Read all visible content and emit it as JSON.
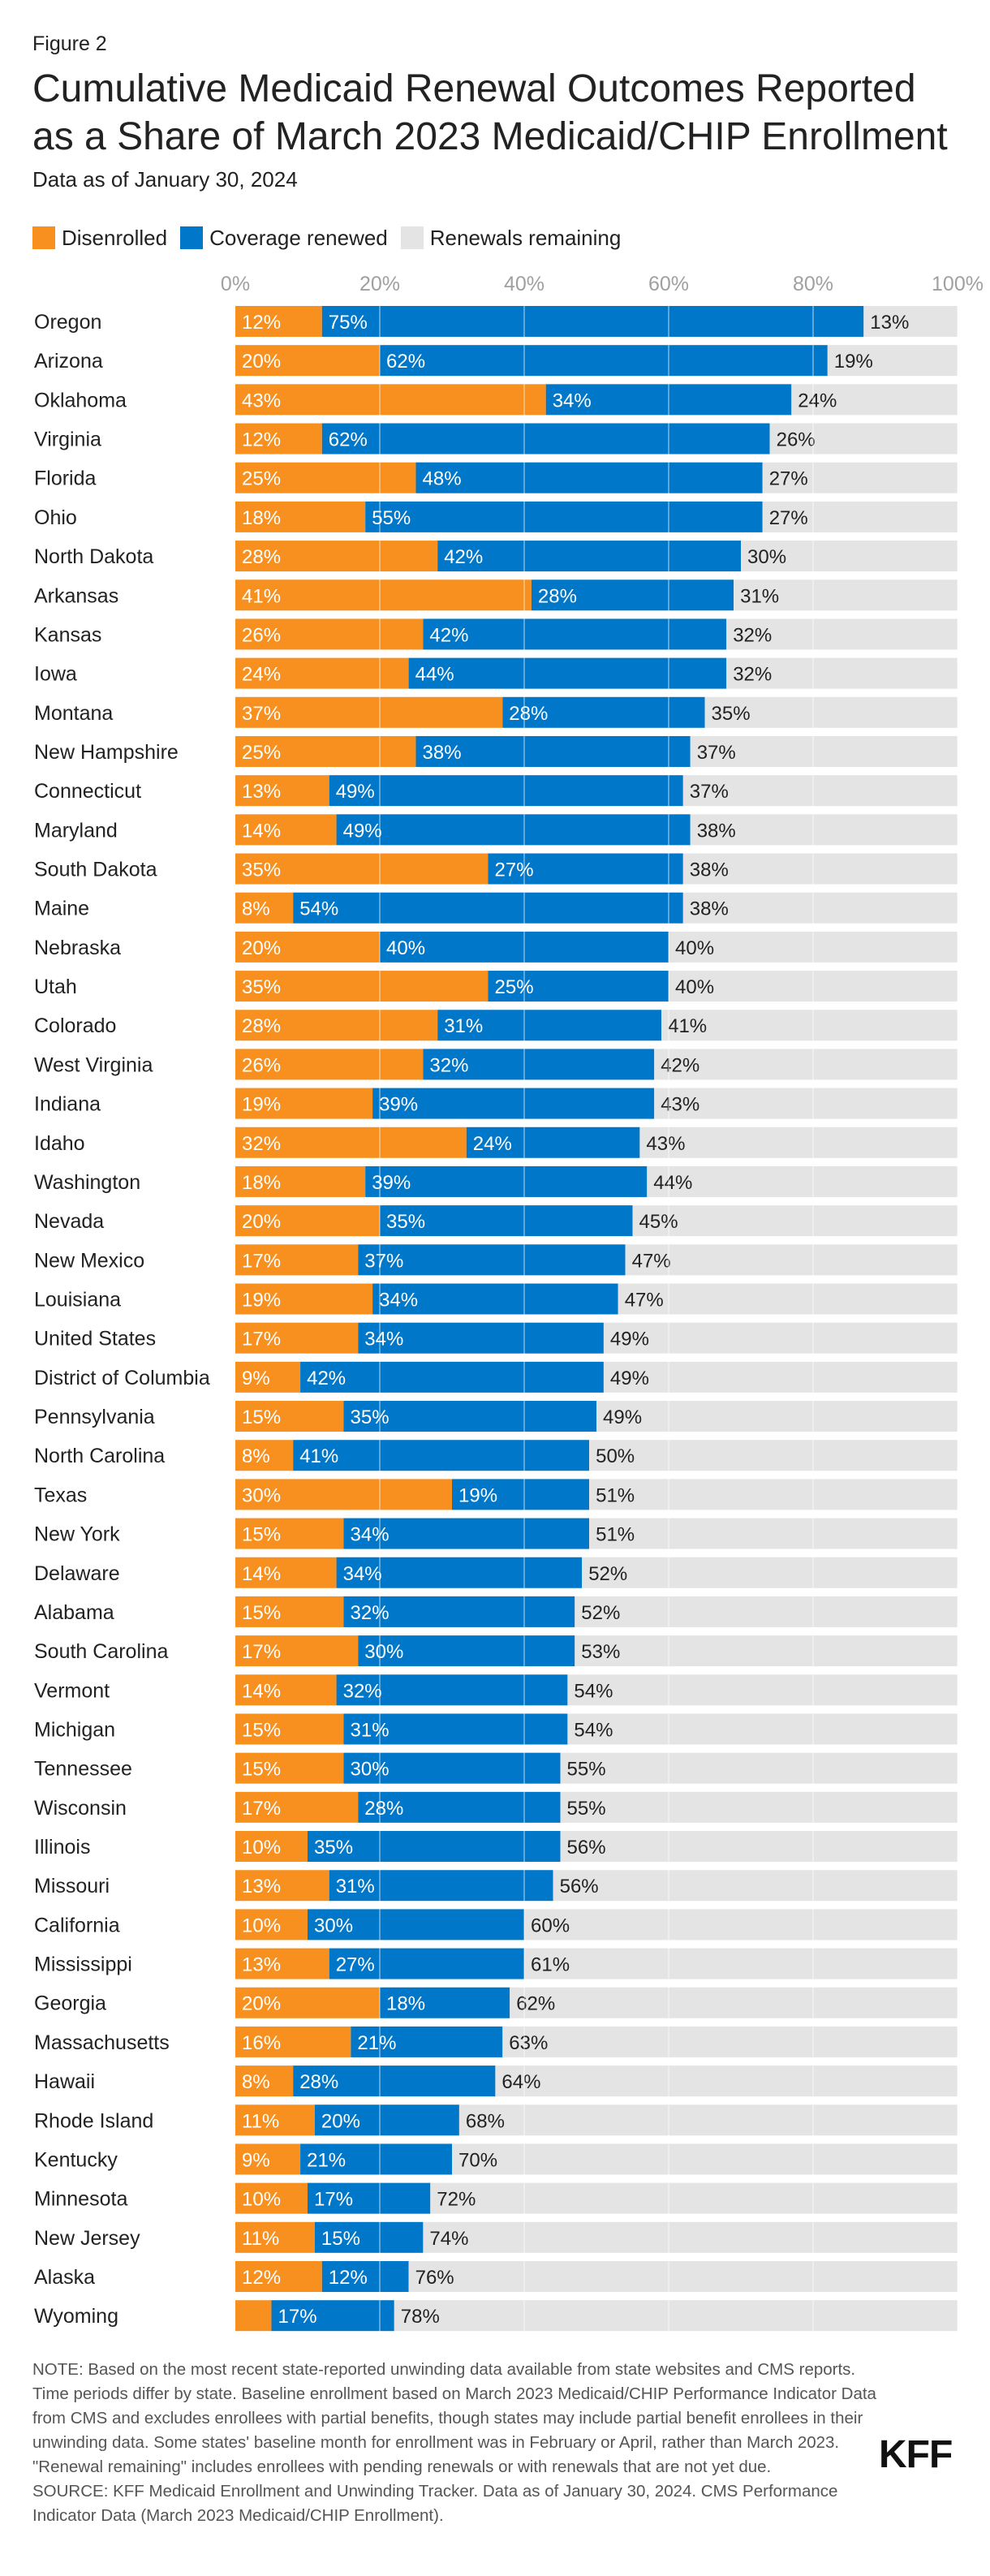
{
  "figure_label": "Figure 2",
  "title": "Cumulative Medicaid Renewal Outcomes Reported as a Share of March 2023 Medicaid/CHIP Enrollment",
  "subtitle": "Data as of January 30, 2024",
  "notes": {
    "note": "NOTE: Based on the most recent state-reported unwinding data available from state websites and CMS reports. Time periods differ by state. Baseline enrollment based on March 2023 Medicaid/CHIP Performance Indicator Data from CMS and excludes enrollees with partial benefits, though states may include partial benefit enrollees in their unwinding data. Some states' baseline month for enrollment was in February or April, rather than March 2023. \"Renewal remaining\" includes enrollees with pending renewals or with renewals that are not yet due.",
    "source": "SOURCE: KFF Medicaid Enrollment and Unwinding Tracker. Data as of January 30, 2024. CMS Performance Indicator Data (March 2023 Medicaid/CHIP Enrollment)."
  },
  "brand": "KFF",
  "colors": {
    "disenrolled": "#f7901e",
    "renewed": "#0077c8",
    "remaining": "#e4e4e4",
    "grid": "#ffffff",
    "axis_text": "#a0a0a0"
  },
  "chart_data": {
    "type": "bar",
    "orientation": "horizontal",
    "stacked": true,
    "legend": {
      "position": "top-left"
    },
    "grid": true,
    "xlim": [
      0,
      100
    ],
    "x_ticks": [
      "0%",
      "20%",
      "40%",
      "60%",
      "80%",
      "100%"
    ],
    "categories": [
      "Oregon",
      "Arizona",
      "Oklahoma",
      "Virginia",
      "Florida",
      "Ohio",
      "North Dakota",
      "Arkansas",
      "Kansas",
      "Iowa",
      "Montana",
      "New Hampshire",
      "Connecticut",
      "Maryland",
      "South Dakota",
      "Maine",
      "Nebraska",
      "Utah",
      "Colorado",
      "West Virginia",
      "Indiana",
      "Idaho",
      "Washington",
      "Nevada",
      "New Mexico",
      "Louisiana",
      "United States",
      "District of Columbia",
      "Pennsylvania",
      "North Carolina",
      "Texas",
      "New York",
      "Delaware",
      "Alabama",
      "South Carolina",
      "Vermont",
      "Michigan",
      "Tennessee",
      "Wisconsin",
      "Illinois",
      "Missouri",
      "California",
      "Mississippi",
      "Georgia",
      "Massachusetts",
      "Hawaii",
      "Rhode Island",
      "Kentucky",
      "Minnesota",
      "New Jersey",
      "Alaska",
      "Wyoming"
    ],
    "series": [
      {
        "name": "Disenrolled",
        "values": [
          12,
          20,
          43,
          12,
          25,
          18,
          28,
          41,
          26,
          24,
          37,
          25,
          13,
          14,
          35,
          8,
          20,
          35,
          28,
          26,
          19,
          32,
          18,
          20,
          17,
          19,
          17,
          9,
          15,
          8,
          30,
          15,
          14,
          15,
          17,
          14,
          15,
          15,
          17,
          10,
          13,
          10,
          13,
          20,
          16,
          8,
          11,
          9,
          10,
          11,
          12,
          5
        ]
      },
      {
        "name": "Coverage renewed",
        "values": [
          75,
          62,
          34,
          62,
          48,
          55,
          42,
          28,
          42,
          44,
          28,
          38,
          49,
          49,
          27,
          54,
          40,
          25,
          31,
          32,
          39,
          24,
          39,
          35,
          37,
          34,
          34,
          42,
          35,
          41,
          19,
          34,
          34,
          32,
          30,
          32,
          31,
          30,
          28,
          35,
          31,
          30,
          27,
          18,
          21,
          28,
          20,
          21,
          17,
          15,
          12,
          17
        ]
      },
      {
        "name": "Renewals remaining",
        "values": [
          13,
          19,
          24,
          26,
          27,
          27,
          30,
          31,
          32,
          32,
          35,
          37,
          37,
          38,
          38,
          38,
          40,
          40,
          41,
          42,
          43,
          43,
          44,
          45,
          47,
          47,
          49,
          49,
          49,
          50,
          51,
          51,
          52,
          52,
          53,
          54,
          54,
          55,
          55,
          56,
          56,
          60,
          61,
          62,
          63,
          64,
          68,
          70,
          72,
          74,
          76,
          78
        ]
      }
    ],
    "labels": {
      "disenrolled": [
        "12%",
        "20%",
        "43%",
        "12%",
        "25%",
        "18%",
        "28%",
        "41%",
        "26%",
        "24%",
        "37%",
        "25%",
        "13%",
        "14%",
        "35%",
        "8%",
        "20%",
        "35%",
        "28%",
        "26%",
        "19%",
        "32%",
        "18%",
        "20%",
        "17%",
        "19%",
        "17%",
        "9%",
        "15%",
        "8%",
        "30%",
        "15%",
        "14%",
        "15%",
        "17%",
        "14%",
        "15%",
        "15%",
        "17%",
        "10%",
        "13%",
        "10%",
        "13%",
        "20%",
        "16%",
        "8%",
        "11%",
        "9%",
        "10%",
        "11%",
        "12%",
        ""
      ],
      "renewed": [
        "75%",
        "62%",
        "34%",
        "62%",
        "48%",
        "55%",
        "42%",
        "28%",
        "42%",
        "44%",
        "28%",
        "38%",
        "49%",
        "49%",
        "27%",
        "54%",
        "40%",
        "25%",
        "31%",
        "32%",
        "39%",
        "24%",
        "39%",
        "35%",
        "37%",
        "34%",
        "34%",
        "42%",
        "35%",
        "41%",
        "19%",
        "34%",
        "34%",
        "32%",
        "30%",
        "32%",
        "31%",
        "30%",
        "28%",
        "35%",
        "31%",
        "30%",
        "27%",
        "18%",
        "21%",
        "28%",
        "20%",
        "21%",
        "17%",
        "15%",
        "12%",
        "17%"
      ],
      "remaining": [
        "13%",
        "19%",
        "24%",
        "26%",
        "27%",
        "27%",
        "30%",
        "31%",
        "32%",
        "32%",
        "35%",
        "37%",
        "37%",
        "38%",
        "38%",
        "38%",
        "40%",
        "40%",
        "41%",
        "42%",
        "43%",
        "43%",
        "44%",
        "45%",
        "47%",
        "47%",
        "49%",
        "49%",
        "49%",
        "50%",
        "51%",
        "51%",
        "52%",
        "52%",
        "53%",
        "54%",
        "54%",
        "55%",
        "55%",
        "56%",
        "56%",
        "60%",
        "61%",
        "62%",
        "63%",
        "64%",
        "68%",
        "70%",
        "72%",
        "74%",
        "76%",
        "78%"
      ]
    }
  }
}
